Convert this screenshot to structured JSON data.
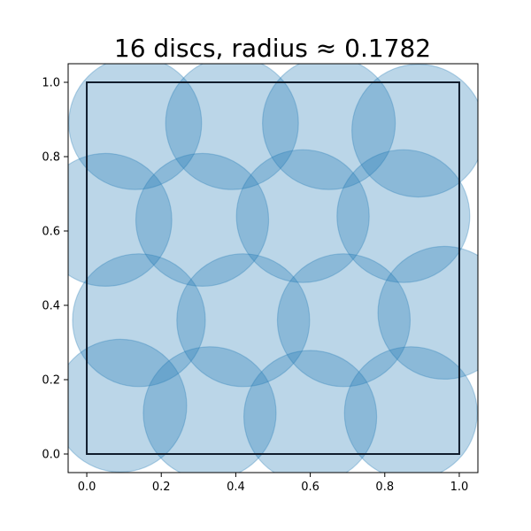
{
  "chart_data": {
    "type": "scatter",
    "title": "16 discs, radius ≈ 0.1782",
    "xlabel": "",
    "ylabel": "",
    "xlim": [
      -0.05,
      1.05
    ],
    "ylim": [
      -0.05,
      1.05
    ],
    "xticks": [
      "0.0",
      "0.2",
      "0.4",
      "0.6",
      "0.8",
      "1.0"
    ],
    "yticks": [
      "0.0",
      "0.2",
      "0.4",
      "0.6",
      "0.8",
      "1.0"
    ],
    "grid": false,
    "aspect": "equal",
    "disc_color": "#1f77b4",
    "disc_radius": 0.1782,
    "discs": [
      {
        "x": 0.13,
        "y": 0.89
      },
      {
        "x": 0.39,
        "y": 0.89
      },
      {
        "x": 0.65,
        "y": 0.89
      },
      {
        "x": 0.89,
        "y": 0.87
      },
      {
        "x": 0.05,
        "y": 0.63
      },
      {
        "x": 0.31,
        "y": 0.63
      },
      {
        "x": 0.58,
        "y": 0.64
      },
      {
        "x": 0.85,
        "y": 0.64
      },
      {
        "x": 0.14,
        "y": 0.36
      },
      {
        "x": 0.42,
        "y": 0.36
      },
      {
        "x": 0.69,
        "y": 0.36
      },
      {
        "x": 0.96,
        "y": 0.38
      },
      {
        "x": 0.09,
        "y": 0.13
      },
      {
        "x": 0.33,
        "y": 0.11
      },
      {
        "x": 0.6,
        "y": 0.1
      },
      {
        "x": 0.87,
        "y": 0.11
      }
    ],
    "unit_square": [
      [
        0,
        0
      ],
      [
        1,
        0
      ],
      [
        1,
        1
      ],
      [
        0,
        1
      ]
    ]
  }
}
